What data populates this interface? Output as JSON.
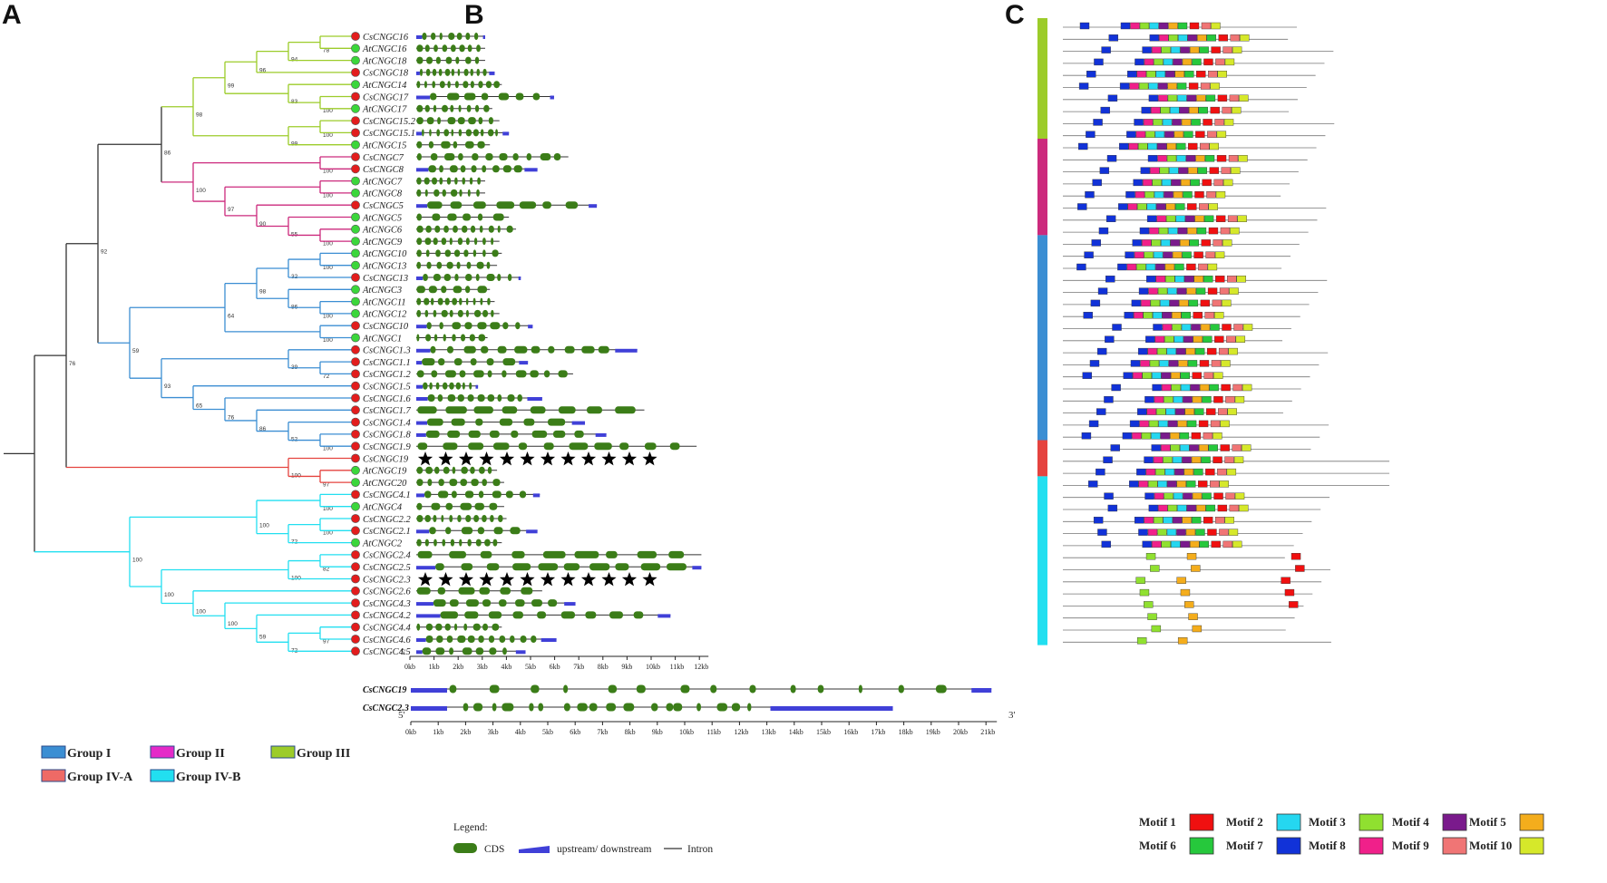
{
  "panels": {
    "a": "A",
    "b": "B",
    "c": "C"
  },
  "colors": {
    "g1": "#3b8ed3",
    "g2": "#cc2a7d",
    "g3": "#9ccc2a",
    "g4a": "#e5433f",
    "g4b": "#22dff0",
    "trunk": "#333333",
    "cs_node": "#e21d1d",
    "at_node": "#3bd63b",
    "cds": "#3b7d18",
    "utr": "#4040d8",
    "intron": "#333333",
    "motifs": [
      "#f01010",
      "#25d7f0",
      "#90e030",
      "#7a1a8c",
      "#f4ad1c",
      "#26c83c",
      "#1132d8",
      "#f0208a",
      "#f07575",
      "#d6e82a"
    ]
  },
  "leaves": [
    {
      "name": "CsCNGC16",
      "sp": "cs",
      "grp": "g3"
    },
    {
      "name": "AtCNGC16",
      "sp": "at",
      "grp": "g3"
    },
    {
      "name": "AtCNGC18",
      "sp": "at",
      "grp": "g3"
    },
    {
      "name": "CsCNGC18",
      "sp": "cs",
      "grp": "g3"
    },
    {
      "name": "AtCNGC14",
      "sp": "at",
      "grp": "g3"
    },
    {
      "name": "CsCNGC17",
      "sp": "cs",
      "grp": "g3"
    },
    {
      "name": "AtCNGC17",
      "sp": "at",
      "grp": "g3"
    },
    {
      "name": "CsCNGC15.2",
      "sp": "cs",
      "grp": "g3"
    },
    {
      "name": "CsCNGC15.1",
      "sp": "cs",
      "grp": "g3"
    },
    {
      "name": "AtCNGC15",
      "sp": "at",
      "grp": "g3"
    },
    {
      "name": "CsCNGC7",
      "sp": "cs",
      "grp": "g2"
    },
    {
      "name": "CsCNGC8",
      "sp": "cs",
      "grp": "g2"
    },
    {
      "name": "AtCNGC7",
      "sp": "at",
      "grp": "g2"
    },
    {
      "name": "AtCNGC8",
      "sp": "at",
      "grp": "g2"
    },
    {
      "name": "CsCNGC5",
      "sp": "cs",
      "grp": "g2"
    },
    {
      "name": "AtCNGC5",
      "sp": "at",
      "grp": "g2"
    },
    {
      "name": "AtCNGC6",
      "sp": "at",
      "grp": "g2"
    },
    {
      "name": "AtCNGC9",
      "sp": "at",
      "grp": "g2"
    },
    {
      "name": "AtCNGC10",
      "sp": "at",
      "grp": "g1"
    },
    {
      "name": "AtCNGC13",
      "sp": "at",
      "grp": "g1"
    },
    {
      "name": "CsCNGC13",
      "sp": "cs",
      "grp": "g1"
    },
    {
      "name": "AtCNGC3",
      "sp": "at",
      "grp": "g1"
    },
    {
      "name": "AtCNGC11",
      "sp": "at",
      "grp": "g1"
    },
    {
      "name": "AtCNGC12",
      "sp": "at",
      "grp": "g1"
    },
    {
      "name": "CsCNGC10",
      "sp": "cs",
      "grp": "g1"
    },
    {
      "name": "AtCNGC1",
      "sp": "at",
      "grp": "g1"
    },
    {
      "name": "CsCNGC1.3",
      "sp": "cs",
      "grp": "g1"
    },
    {
      "name": "CsCNGC1.1",
      "sp": "cs",
      "grp": "g1"
    },
    {
      "name": "CsCNGC1.2",
      "sp": "cs",
      "grp": "g1"
    },
    {
      "name": "CsCNGC1.5",
      "sp": "cs",
      "grp": "g1"
    },
    {
      "name": "CsCNGC1.6",
      "sp": "cs",
      "grp": "g1"
    },
    {
      "name": "CsCNGC1.7",
      "sp": "cs",
      "grp": "g1"
    },
    {
      "name": "CsCNGC1.4",
      "sp": "cs",
      "grp": "g1"
    },
    {
      "name": "CsCNGC1.8",
      "sp": "cs",
      "grp": "g1"
    },
    {
      "name": "CsCNGC1.9",
      "sp": "cs",
      "grp": "g1"
    },
    {
      "name": "CsCNGC19",
      "sp": "cs",
      "grp": "g4a"
    },
    {
      "name": "AtCNGC19",
      "sp": "at",
      "grp": "g4a"
    },
    {
      "name": "AtCNGC20",
      "sp": "at",
      "grp": "g4a"
    },
    {
      "name": "CsCNGC4.1",
      "sp": "cs",
      "grp": "g4b"
    },
    {
      "name": "AtCNGC4",
      "sp": "at",
      "grp": "g4b"
    },
    {
      "name": "CsCNGC2.2",
      "sp": "cs",
      "grp": "g4b"
    },
    {
      "name": "CsCNGC2.1",
      "sp": "cs",
      "grp": "g4b"
    },
    {
      "name": "AtCNGC2",
      "sp": "at",
      "grp": "g4b"
    },
    {
      "name": "CsCNGC2.4",
      "sp": "cs",
      "grp": "g4b"
    },
    {
      "name": "CsCNGC2.5",
      "sp": "cs",
      "grp": "g4b"
    },
    {
      "name": "CsCNGC2.3",
      "sp": "cs",
      "grp": "g4b"
    },
    {
      "name": "CsCNGC2.6",
      "sp": "cs",
      "grp": "g4b"
    },
    {
      "name": "CsCNGC4.3",
      "sp": "cs",
      "grp": "g4b"
    },
    {
      "name": "CsCNGC4.2",
      "sp": "cs",
      "grp": "g4b"
    },
    {
      "name": "CsCNGC4.4",
      "sp": "cs",
      "grp": "g4b"
    },
    {
      "name": "CsCNGC4.6",
      "sp": "cs",
      "grp": "g4b"
    },
    {
      "name": "CsCNGC4.5",
      "sp": "cs",
      "grp": "g4b"
    }
  ],
  "tree": {
    "a": [
      0,
      1,
      78
    ],
    "b": [
      "a",
      2,
      94
    ],
    "c": [
      "b",
      3,
      96
    ],
    "d": [
      5,
      6,
      100
    ],
    "e": [
      4,
      "d",
      83
    ],
    "f": [
      "c",
      "e",
      99
    ],
    "g": [
      7,
      8,
      100
    ],
    "h": [
      "g",
      9,
      99
    ],
    "i": [
      "f",
      "h",
      98
    ],
    "j": [
      10,
      11,
      100
    ],
    "k": [
      12,
      13,
      100
    ],
    "l": [
      16,
      17,
      100
    ],
    "m": [
      15,
      "l",
      55
    ],
    "n": [
      "m",
      14,
      90
    ],
    "o": [
      "k",
      "n",
      97
    ],
    "p": [
      "j",
      "o",
      100
    ],
    "q": [
      "i",
      "p",
      86
    ],
    "r": [
      18,
      19,
      100
    ],
    "s": [
      "r",
      20,
      32
    ],
    "t": [
      22,
      23,
      100
    ],
    "u": [
      21,
      "t",
      86
    ],
    "v": [
      "s",
      "u",
      98
    ],
    "w": [
      24,
      25,
      100
    ],
    "x": [
      "v",
      "w",
      64
    ],
    "y": [
      27,
      28,
      72
    ],
    "z": [
      26,
      "y",
      39
    ],
    "aa": [
      33,
      34,
      100
    ],
    "ab": [
      32,
      "aa",
      52
    ],
    "ac": [
      31,
      "ab",
      86
    ],
    "ad": [
      30,
      "ac",
      76
    ],
    "ae": [
      29,
      "ad",
      65
    ],
    "af": [
      "z",
      "ae",
      93
    ],
    "ag": [
      "x",
      "af",
      59
    ],
    "ah": [
      "q",
      "ag",
      92
    ],
    "ai": [
      36,
      37,
      97
    ],
    "aj": [
      35,
      "ai",
      100
    ],
    "ak": [
      "ah",
      "aj",
      76
    ],
    "al": [
      38,
      39,
      100
    ],
    "am": [
      40,
      41,
      100
    ],
    "an": [
      "am",
      42,
      72
    ],
    "ao": [
      "al",
      "an",
      100
    ],
    "ap": [
      43,
      44,
      82
    ],
    "aq": [
      "ap",
      45,
      100
    ],
    "ar": [
      49,
      50,
      97
    ],
    "as": [
      "ar",
      51,
      72
    ],
    "at": [
      48,
      "as",
      59
    ],
    "au": [
      47,
      "at",
      100
    ],
    "av": [
      46,
      "au",
      100
    ],
    "aw": [
      "aq",
      "av",
      100
    ],
    "ax": [
      "ao",
      "aw",
      100
    ],
    "root": [
      "ak",
      "ax",
      0
    ]
  },
  "root_node": "root",
  "gene_axis": {
    "ticks": [
      "0kb",
      "1kb",
      "2kb",
      "3kb",
      "4kb",
      "5kb",
      "6kb",
      "7kb",
      "8kb",
      "9kb",
      "10kb",
      "11kb",
      "12kb"
    ],
    "five": "5'",
    "three": "3'"
  },
  "big_axis": {
    "ticks": [
      "0kb",
      "1kb",
      "2kb",
      "3kb",
      "4kb",
      "5kb",
      "6kb",
      "7kb",
      "8kb",
      "9kb",
      "10kb",
      "11kb",
      "12kb",
      "13kb",
      "14kb",
      "15kb",
      "16kb",
      "17kb",
      "18kb",
      "19kb",
      "20kb",
      "21kb"
    ],
    "five": "5'",
    "three": "3'"
  },
  "gene_lengths_kb": [
    2.9,
    2.9,
    2.9,
    3.3,
    3.6,
    5.8,
    3.2,
    3.5,
    3.9,
    3.1,
    6.4,
    5.1,
    2.9,
    2.9,
    7.6,
    3.9,
    4.2,
    3.5,
    3.6,
    3.4,
    4.4,
    3.1,
    3.3,
    3.5,
    4.9,
    3.0,
    9.3,
    4.7,
    6.6,
    2.6,
    5.3,
    9.6,
    7.1,
    8.0,
    11.8,
    0,
    3.4,
    3.7,
    5.2,
    3.7,
    3.8,
    5.1,
    3.6,
    12.0,
    12.0,
    0,
    5.3,
    6.7,
    10.7,
    3.6,
    5.9,
    4.6
  ],
  "big_genes": [
    {
      "name": "CsCNGC19",
      "len_kb": 21.2
    },
    {
      "name": "CsCNGC2.3",
      "len_kb": 17.6
    }
  ],
  "gene_legend": {
    "title": "Legend:",
    "cds": "CDS",
    "utr": "upstream/ downstream",
    "intron": "Intron"
  },
  "groups": [
    {
      "label": "Group I",
      "color": "#3b8ed3"
    },
    {
      "label": "Group II",
      "color": "#e42ac8"
    },
    {
      "label": "Group III",
      "color": "#9ccc2a"
    },
    {
      "label": "Group IV-A",
      "color": "#ee6a66"
    },
    {
      "label": "Group IV-B",
      "color": "#22dff0"
    }
  ],
  "motif_legend": [
    {
      "label": "Motif 1",
      "color": "#f01010"
    },
    {
      "label": "Motif 2",
      "color": "#25d7f0"
    },
    {
      "label": "Motif 3",
      "color": "#90e030"
    },
    {
      "label": "Motif 4",
      "color": "#7a1a8c"
    },
    {
      "label": "Motif 5",
      "color": "#f4ad1c"
    },
    {
      "label": "Motif 6",
      "color": "#26c83c"
    },
    {
      "label": "Motif 7",
      "color": "#1132d8"
    },
    {
      "label": "Motif 8",
      "color": "#f0208a"
    },
    {
      "label": "Motif 9",
      "color": "#f07575"
    },
    {
      "label": "Motif 10",
      "color": "#d6e82a"
    }
  ]
}
